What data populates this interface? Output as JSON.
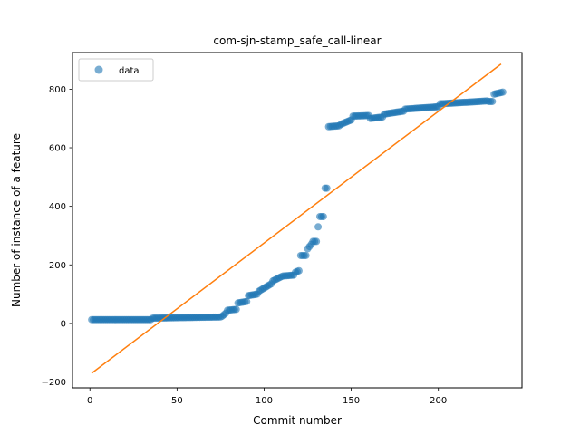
{
  "chart_data": {
    "type": "scatter",
    "title": "com-sjn-stamp_safe_call-linear",
    "xlabel": "Commit number",
    "ylabel": "Number of instance of a feature",
    "xlim": [
      -10,
      248
    ],
    "ylim": [
      -220,
      925
    ],
    "xticks": [
      0,
      50,
      100,
      150,
      200
    ],
    "yticks": [
      -200,
      0,
      200,
      400,
      600,
      800
    ],
    "legend": {
      "position": "top-left",
      "entries": [
        "data"
      ]
    },
    "colors": {
      "scatter": "#1f77b4",
      "fit": "#ff7f0e"
    },
    "series": [
      {
        "name": "data",
        "kind": "scatter",
        "segments": [
          {
            "x_start": 1,
            "x_end": 35,
            "y_start": 13,
            "y_end": 13
          },
          {
            "x_start": 36,
            "x_end": 75,
            "y_start": 18,
            "y_end": 22
          },
          {
            "x_start": 76,
            "x_end": 78,
            "y_start": 25,
            "y_end": 35
          },
          {
            "x_start": 79,
            "x_end": 84,
            "y_start": 45,
            "y_end": 48
          },
          {
            "x_start": 85,
            "x_end": 90,
            "y_start": 70,
            "y_end": 75
          },
          {
            "x_start": 91,
            "x_end": 96,
            "y_start": 95,
            "y_end": 100
          },
          {
            "x_start": 97,
            "x_end": 104,
            "y_start": 110,
            "y_end": 135
          },
          {
            "x_start": 105,
            "x_end": 110,
            "y_start": 145,
            "y_end": 160
          },
          {
            "x_start": 111,
            "x_end": 117,
            "y_start": 162,
            "y_end": 165
          },
          {
            "x_start": 118,
            "x_end": 120,
            "y_start": 175,
            "y_end": 180
          },
          {
            "x_start": 121,
            "x_end": 124,
            "y_start": 232,
            "y_end": 232
          },
          {
            "x_start": 125,
            "x_end": 127,
            "y_start": 255,
            "y_end": 270
          },
          {
            "x_start": 128,
            "x_end": 130,
            "y_start": 280,
            "y_end": 280
          },
          {
            "x_start": 131,
            "x_end": 131,
            "y_start": 330,
            "y_end": 330
          },
          {
            "x_start": 132,
            "x_end": 134,
            "y_start": 365,
            "y_end": 365
          },
          {
            "x_start": 135,
            "x_end": 136,
            "y_start": 462,
            "y_end": 462
          },
          {
            "x_start": 137,
            "x_end": 143,
            "y_start": 672,
            "y_end": 675
          },
          {
            "x_start": 144,
            "x_end": 150,
            "y_start": 680,
            "y_end": 695
          },
          {
            "x_start": 151,
            "x_end": 160,
            "y_start": 708,
            "y_end": 710
          },
          {
            "x_start": 161,
            "x_end": 168,
            "y_start": 700,
            "y_end": 705
          },
          {
            "x_start": 169,
            "x_end": 180,
            "y_start": 715,
            "y_end": 725
          },
          {
            "x_start": 181,
            "x_end": 200,
            "y_start": 732,
            "y_end": 740
          },
          {
            "x_start": 201,
            "x_end": 215,
            "y_start": 750,
            "y_end": 755
          },
          {
            "x_start": 216,
            "x_end": 228,
            "y_start": 755,
            "y_end": 760
          },
          {
            "x_start": 229,
            "x_end": 231,
            "y_start": 758,
            "y_end": 758
          },
          {
            "x_start": 232,
            "x_end": 237,
            "y_start": 783,
            "y_end": 790
          }
        ]
      },
      {
        "name": "",
        "kind": "line",
        "points": [
          [
            1,
            -170
          ],
          [
            236,
            886
          ]
        ]
      }
    ]
  }
}
